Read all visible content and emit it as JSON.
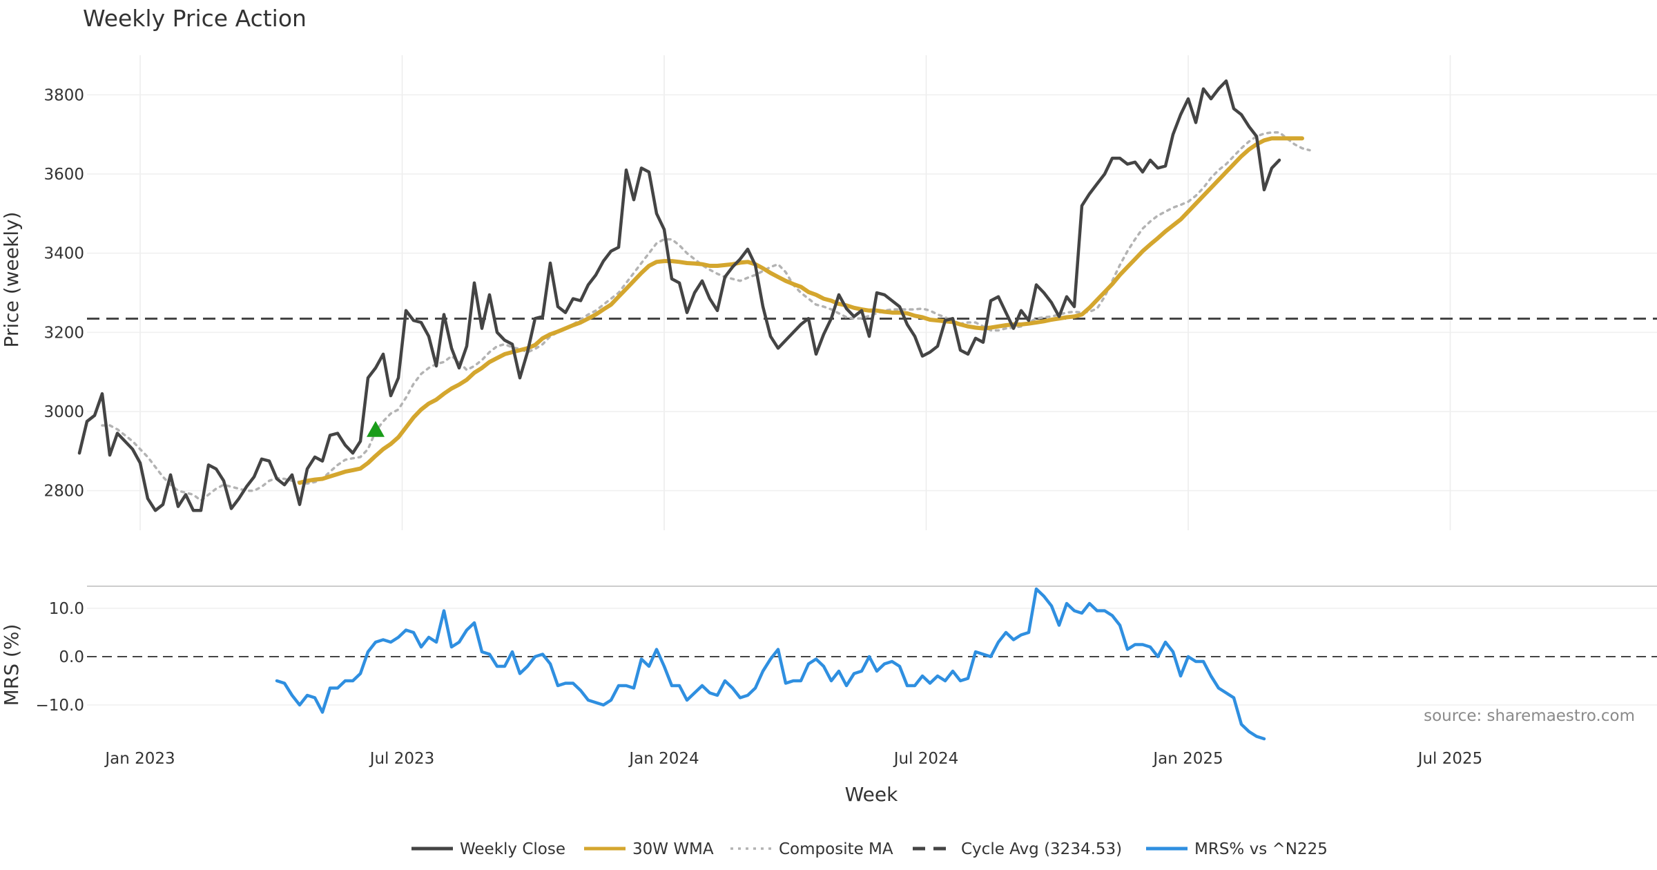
{
  "chart_data": {
    "type": "line",
    "title": "Weekly Price Action",
    "xlabel": "Week",
    "x_tick_labels": [
      "Jan 2023",
      "Jul 2023",
      "Jan 2024",
      "Jul 2024",
      "Jan 2025",
      "Jul 2025"
    ],
    "source": "source: sharemaestro.com",
    "price_panel": {
      "ylabel": "Price (weekly)",
      "ylim": [
        2700,
        3900
      ],
      "y_ticks": [
        2800,
        3000,
        3200,
        3400,
        3600,
        3800
      ],
      "cycle_avg": 3234.53,
      "signal_marker": {
        "week": 39,
        "value": 2955,
        "color": "#1a9c1a",
        "shape": "triangle-up"
      },
      "series": [
        {
          "name": "Weekly Close",
          "color": "#444444",
          "style": "solid",
          "start_week": 0,
          "values": [
            2895,
            2975,
            2990,
            3045,
            2890,
            2945,
            2925,
            2905,
            2870,
            2780,
            2750,
            2765,
            2840,
            2760,
            2790,
            2750,
            2750,
            2865,
            2855,
            2825,
            2755,
            2780,
            2810,
            2835,
            2880,
            2875,
            2830,
            2815,
            2840,
            2765,
            2855,
            2885,
            2875,
            2940,
            2945,
            2915,
            2895,
            2925,
            3085,
            3110,
            3145,
            3040,
            3085,
            3255,
            3230,
            3225,
            3190,
            3115,
            3245,
            3160,
            3110,
            3165,
            3325,
            3210,
            3295,
            3200,
            3180,
            3170,
            3085,
            3150,
            3235,
            3240,
            3375,
            3265,
            3250,
            3285,
            3280,
            3320,
            3345,
            3380,
            3405,
            3415,
            3610,
            3535,
            3615,
            3605,
            3500,
            3460,
            3335,
            3325,
            3250,
            3300,
            3330,
            3285,
            3255,
            3340,
            3365,
            3385,
            3410,
            3370,
            3265,
            3190,
            3160,
            3180,
            3200,
            3220,
            3235,
            3145,
            3195,
            3235,
            3295,
            3260,
            3240,
            3255,
            3190,
            3300,
            3295,
            3280,
            3265,
            3220,
            3190,
            3140,
            3150,
            3165,
            3230,
            3235,
            3155,
            3145,
            3185,
            3175,
            3280,
            3290,
            3250,
            3210,
            3255,
            3230,
            3320,
            3300,
            3275,
            3240,
            3290,
            3265,
            3520,
            3550,
            3575,
            3600,
            3640,
            3640,
            3625,
            3630,
            3605,
            3635,
            3615,
            3620,
            3700,
            3750,
            3790,
            3730,
            3815,
            3790,
            3815,
            3835,
            3765,
            3750,
            3720,
            3695,
            3560,
            3615,
            3635
          ]
        },
        {
          "name": "30W WMA",
          "color": "#d4a62e",
          "style": "solid",
          "start_week": 29,
          "values": [
            2820,
            2825,
            2828,
            2830,
            2836,
            2842,
            2848,
            2852,
            2856,
            2870,
            2888,
            2905,
            2918,
            2935,
            2960,
            2985,
            3005,
            3020,
            3030,
            3045,
            3058,
            3068,
            3080,
            3098,
            3110,
            3125,
            3135,
            3145,
            3150,
            3155,
            3160,
            3168,
            3185,
            3195,
            3202,
            3210,
            3218,
            3225,
            3235,
            3245,
            3258,
            3270,
            3290,
            3310,
            3330,
            3350,
            3368,
            3378,
            3380,
            3380,
            3378,
            3375,
            3374,
            3372,
            3368,
            3368,
            3370,
            3372,
            3376,
            3378,
            3372,
            3362,
            3350,
            3340,
            3330,
            3322,
            3315,
            3302,
            3295,
            3285,
            3280,
            3272,
            3268,
            3262,
            3258,
            3255,
            3255,
            3252,
            3250,
            3250,
            3248,
            3242,
            3238,
            3232,
            3230,
            3228,
            3226,
            3220,
            3215,
            3212,
            3210,
            3212,
            3215,
            3218,
            3220,
            3220,
            3222,
            3225,
            3228,
            3232,
            3235,
            3238,
            3240,
            3245,
            3262,
            3282,
            3302,
            3322,
            3345,
            3365,
            3385,
            3405,
            3422,
            3438,
            3455,
            3470,
            3485,
            3505,
            3525,
            3545,
            3565,
            3585,
            3605,
            3625,
            3645,
            3662,
            3675,
            3685,
            3690,
            3690,
            3690,
            3690,
            3690
          ]
        },
        {
          "name": "Composite MA",
          "color": "#b3b3b3",
          "style": "dotted",
          "start_week": 3,
          "values": [
            2965,
            2965,
            2955,
            2940,
            2925,
            2905,
            2885,
            2860,
            2835,
            2815,
            2800,
            2795,
            2790,
            2775,
            2790,
            2805,
            2815,
            2810,
            2805,
            2800,
            2800,
            2810,
            2825,
            2832,
            2830,
            2825,
            2822,
            2818,
            2822,
            2830,
            2848,
            2865,
            2878,
            2882,
            2885,
            2905,
            2950,
            2975,
            2995,
            3005,
            3035,
            3070,
            3095,
            3110,
            3120,
            3125,
            3140,
            3125,
            3105,
            3115,
            3130,
            3150,
            3165,
            3170,
            3162,
            3158,
            3150,
            3158,
            3170,
            3190,
            3200,
            3210,
            3220,
            3232,
            3245,
            3255,
            3270,
            3285,
            3300,
            3325,
            3350,
            3375,
            3400,
            3425,
            3435,
            3435,
            3420,
            3400,
            3385,
            3370,
            3358,
            3348,
            3340,
            3335,
            3330,
            3338,
            3345,
            3355,
            3365,
            3372,
            3352,
            3320,
            3300,
            3285,
            3270,
            3265,
            3258,
            3248,
            3238,
            3235,
            3235,
            3242,
            3248,
            3255,
            3258,
            3258,
            3258,
            3258,
            3260,
            3255,
            3245,
            3238,
            3228,
            3222,
            3225,
            3225,
            3215,
            3205,
            3205,
            3210,
            3212,
            3215,
            3225,
            3235,
            3238,
            3240,
            3245,
            3250,
            3252,
            3250,
            3252,
            3260,
            3290,
            3330,
            3370,
            3405,
            3435,
            3462,
            3480,
            3495,
            3505,
            3515,
            3522,
            3530,
            3545,
            3565,
            3590,
            3610,
            3625,
            3645,
            3665,
            3682,
            3695,
            3702,
            3705,
            3705,
            3690,
            3675,
            3665,
            3660
          ]
        }
      ]
    },
    "mrs_panel": {
      "ylabel": "MRS (%)",
      "ylim": [
        -17,
        15
      ],
      "y_ticks": [
        10.0,
        0.0,
        -10.0
      ],
      "y_tick_labels": [
        "10.0",
        "0.0",
        "−10.0"
      ],
      "series": [
        {
          "name": "MRS% vs ^N225",
          "color": "#2f8fe0",
          "style": "solid",
          "start_week": 26,
          "values": [
            -5.0,
            -5.5,
            -8.0,
            -10.0,
            -8.0,
            -8.5,
            -11.5,
            -6.5,
            -6.5,
            -5.0,
            -5.0,
            -3.5,
            1.0,
            3.0,
            3.5,
            3.0,
            4.0,
            5.5,
            5.0,
            2.0,
            4.0,
            3.0,
            9.5,
            2.0,
            3.0,
            5.5,
            7.0,
            1.0,
            0.5,
            -2.0,
            -2.0,
            1.0,
            -3.5,
            -2.0,
            0.0,
            0.5,
            -1.5,
            -6.0,
            -5.5,
            -5.5,
            -7.0,
            -9.0,
            -9.5,
            -10.0,
            -9.0,
            -6.0,
            -6.0,
            -6.5,
            -0.5,
            -2.0,
            1.5,
            -2.0,
            -6.0,
            -6.0,
            -9.0,
            -7.5,
            -6.0,
            -7.5,
            -8.0,
            -5.0,
            -6.5,
            -8.5,
            -8.0,
            -6.5,
            -3.0,
            -0.5,
            1.5,
            -5.5,
            -5.0,
            -5.0,
            -1.5,
            -0.5,
            -2.0,
            -5.0,
            -3.0,
            -6.0,
            -3.5,
            -3.0,
            0.0,
            -3.0,
            -1.5,
            -1.0,
            -2.0,
            -6.0,
            -6.0,
            -4.0,
            -5.5,
            -4.0,
            -5.0,
            -3.0,
            -5.0,
            -4.5,
            1.0,
            0.5,
            0.0,
            3.0,
            5.0,
            3.5,
            4.5,
            5.0,
            14.0,
            12.5,
            10.5,
            6.5,
            11.0,
            9.5,
            9.0,
            11.0,
            9.5,
            9.5,
            8.5,
            6.5,
            1.5,
            2.5,
            2.5,
            2.0,
            0.0,
            3.0,
            1.0,
            -4.0,
            0.0,
            -1.0,
            -1.0,
            -4.0,
            -6.5,
            -7.5,
            -8.5,
            -14.0,
            -15.5,
            -16.5,
            -17.0
          ]
        }
      ]
    },
    "legend": [
      {
        "label": "Weekly Close",
        "color": "#444444",
        "style": "solid"
      },
      {
        "label": "30W WMA",
        "color": "#d4a62e",
        "style": "solid"
      },
      {
        "label": "Composite MA",
        "color": "#b3b3b3",
        "style": "dotted"
      },
      {
        "label": "Cycle Avg (3234.53)",
        "color": "#444444",
        "style": "dashed"
      },
      {
        "label": "MRS% vs ^N225",
        "color": "#2f8fe0",
        "style": "solid"
      }
    ]
  }
}
